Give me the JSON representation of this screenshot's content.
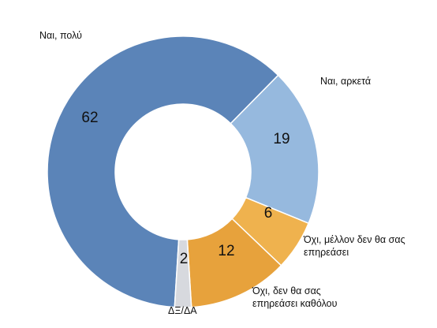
{
  "chart_data": {
    "type": "pie",
    "donut": true,
    "categories": [
      "Ναι, πολύ",
      "Ναι, αρκετά",
      "Όχι, μέλλον δεν θα σας επηρεάσει",
      "Όχι, δεν θα σας επηρεάσει καθόλου",
      "ΔΞ/ΔΑ"
    ],
    "values": [
      62,
      19,
      6,
      12,
      2
    ],
    "colors": [
      "#5b84b8",
      "#96b9de",
      "#efb24e",
      "#e7a23c",
      "#d7d9de"
    ],
    "labels": [
      {
        "text": "62",
        "lines": [
          "Ναι, πολύ"
        ]
      },
      {
        "text": "19",
        "lines": [
          "Ναι, αρκετά"
        ]
      },
      {
        "text": "6",
        "lines": [
          "Όχι, μέλλον δεν θα σας",
          "επηρεάσει"
        ]
      },
      {
        "text": "12",
        "lines": [
          "Όχι, δεν θα σας",
          "επηρεάσει καθόλου"
        ]
      },
      {
        "text": "2",
        "lines": [
          "ΔΞ/ΔΑ"
        ]
      }
    ],
    "title": "",
    "legend": "none"
  }
}
